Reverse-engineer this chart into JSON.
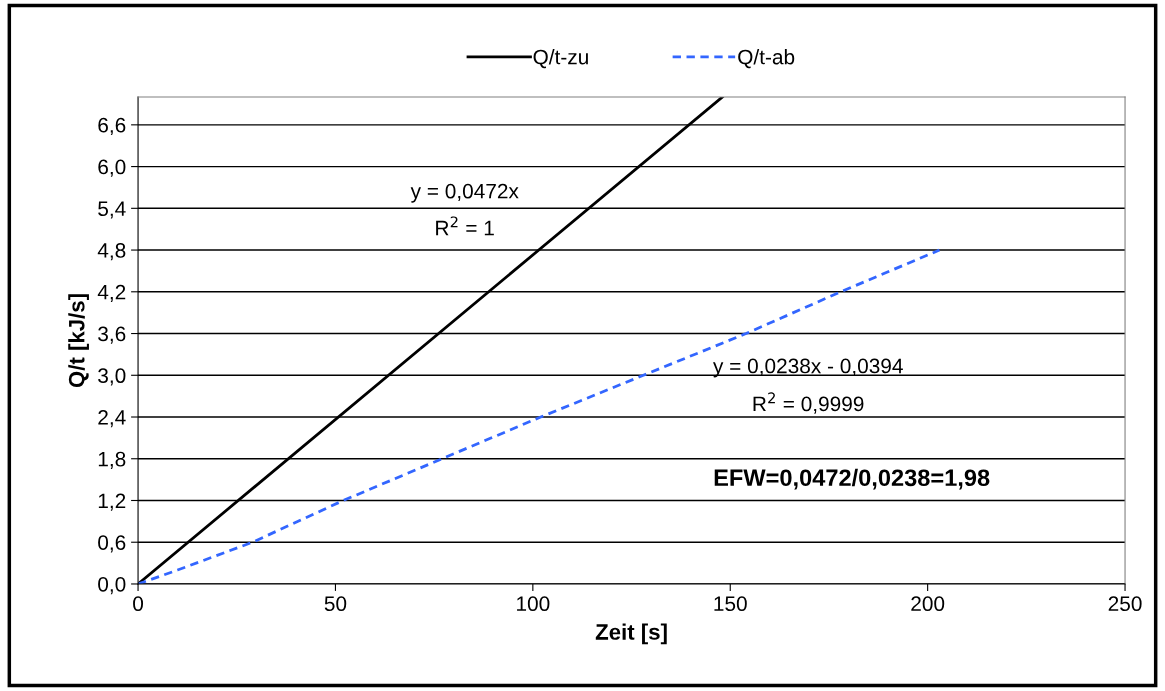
{
  "chart_data": {
    "type": "line",
    "xlabel": "Zeit [s]",
    "ylabel": "Q/t [kJ/s]",
    "series": [
      {
        "name": "Q/t-zu",
        "color": "#000000",
        "line_style": "solid",
        "x": [
          0,
          148
        ],
        "values": [
          0,
          7.0
        ]
      },
      {
        "name": "Q/t-ab",
        "color": "#3366ff",
        "line_style": "dashed",
        "x": [
          0,
          10,
          29,
          52,
          77,
          102,
          128,
          154,
          178,
          203
        ],
        "values": [
          0,
          0.2,
          0.6,
          1.2,
          1.8,
          2.4,
          3.0,
          3.6,
          4.2,
          4.8
        ]
      }
    ],
    "xlim": [
      0,
      250
    ],
    "xticks": [
      0,
      50,
      100,
      150,
      200,
      250
    ],
    "ylim": [
      0,
      7.0
    ],
    "yticks": [
      {
        "value": 0,
        "label": "0,0"
      },
      {
        "value": 0.6,
        "label": "0,6"
      },
      {
        "value": 1.2,
        "label": "1,2"
      },
      {
        "value": 1.8,
        "label": "1,8"
      },
      {
        "value": 2.4,
        "label": "2,4"
      },
      {
        "value": 3.0,
        "label": "3,0"
      },
      {
        "value": 3.6,
        "label": "3,6"
      },
      {
        "value": 4.2,
        "label": "4,2"
      },
      {
        "value": 4.8,
        "label": "4,8"
      },
      {
        "value": 5.4,
        "label": "5,4"
      },
      {
        "value": 6.0,
        "label": "6,0"
      },
      {
        "value": 6.6,
        "label": "6,6"
      }
    ],
    "grid": "y",
    "legend": "top",
    "marker": "none",
    "annotations": [
      "y = 0,0472x",
      "R$^{2}$ = 1",
      "y = 0,0238x - 0,0394",
      "R$^{2}$ = 0,9999",
      "EFW=0,0472/0,0238=1,98"
    ]
  }
}
